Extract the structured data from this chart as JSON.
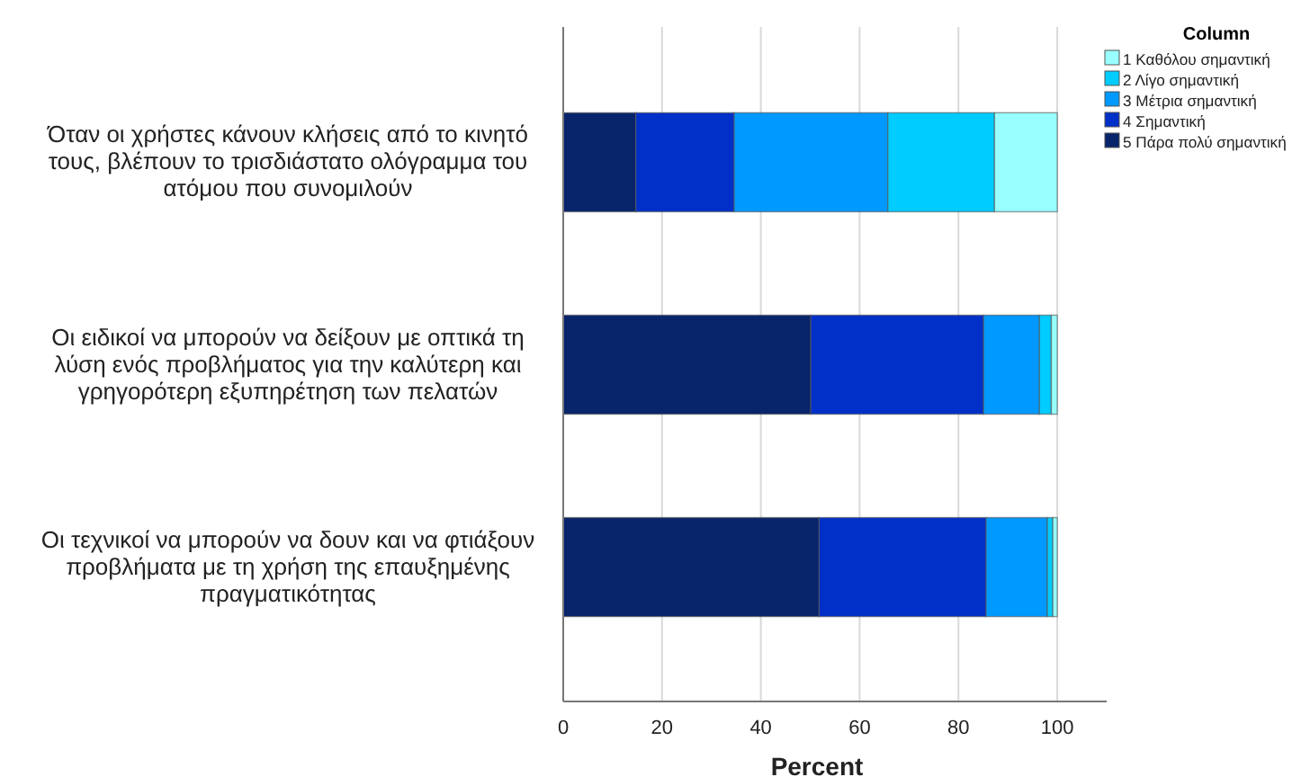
{
  "chart_data": {
    "type": "bar",
    "orientation": "horizontal",
    "stacked": true,
    "categories": [
      "Όταν οι χρήστες κάνουν κλήσεις από το κινητό τους, βλέπουν το τρισδιάστατο ολόγραμμα του ατόμου που συνομιλούν",
      "Οι ειδικοί να μπορούν να δείξουν με οπτικά τη λύση ενός προβλήματος για την καλύτερη και γρηγορότερη εξυπηρέτηση των πελατών",
      "Οι τεχνικοί να μπορούν να δουν και να φτιάξουν προβλήματα με τη χρήση της επαυξημένης πραγματικότητας"
    ],
    "series": [
      {
        "name": "5 Πάρα πολύ σημαντική",
        "color": "#08246b",
        "values": [
          14.7,
          50.1,
          51.8
        ]
      },
      {
        "name": "4 Σημαντική",
        "color": "#0030c8",
        "values": [
          19.9,
          35.0,
          33.8
        ]
      },
      {
        "name": "3 Μέτρια σημαντική",
        "color": "#0099ff",
        "values": [
          31.1,
          11.3,
          12.4
        ]
      },
      {
        "name": "2 Λίγο σημαντική",
        "color": "#00ccff",
        "values": [
          21.6,
          2.4,
          1.1
        ]
      },
      {
        "name": "1 Καθόλου σημαντική",
        "color": "#99ffff",
        "values": [
          12.7,
          1.2,
          0.9
        ]
      }
    ],
    "xlim": [
      0,
      110
    ],
    "xticks": [
      0,
      20,
      40,
      60,
      80,
      100
    ],
    "xlabel": "Percent",
    "legend_title": "Column",
    "legend": "top right",
    "grid": "x"
  }
}
